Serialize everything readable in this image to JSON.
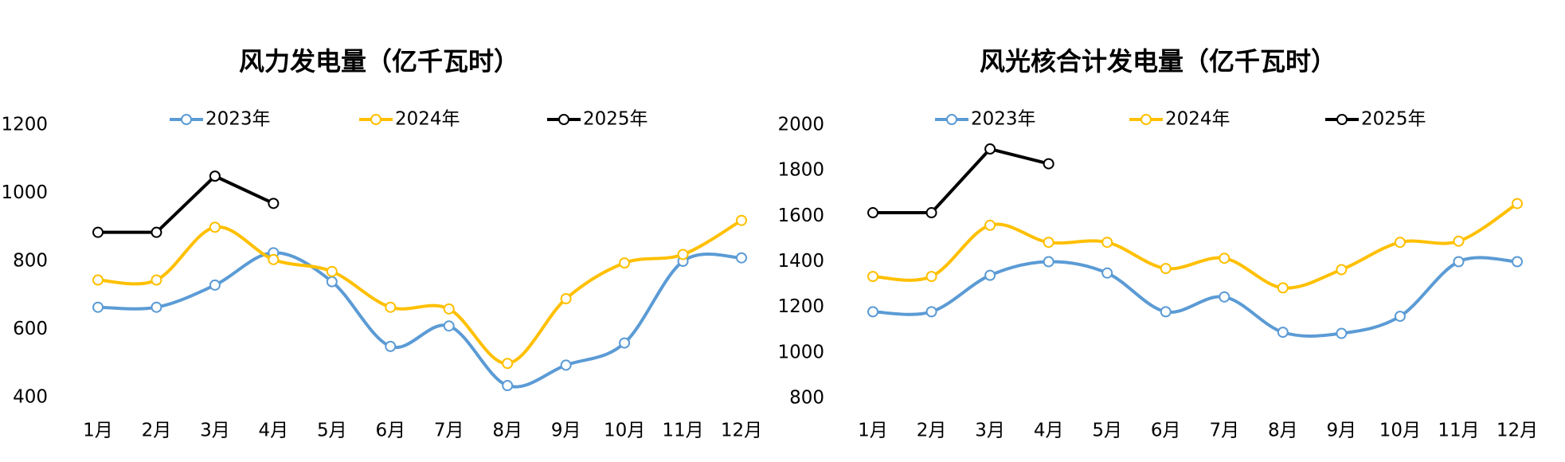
{
  "chart_data": [
    {
      "type": "line",
      "title": "风力发电量（亿千瓦时）",
      "categories": [
        "1月",
        "2月",
        "3月",
        "4月",
        "5月",
        "6月",
        "7月",
        "8月",
        "9月",
        "10月",
        "11月",
        "12月"
      ],
      "ylim": [
        400,
        1200
      ],
      "yticks": [
        400,
        600,
        800,
        1000,
        1200
      ],
      "series": [
        {
          "name": "2023年",
          "color": "#5b9bd5",
          "smooth": true,
          "values": [
            665,
            665,
            730,
            825,
            740,
            550,
            610,
            435,
            495,
            560,
            800,
            810
          ]
        },
        {
          "name": "2024年",
          "color": "#ffc000",
          "smooth": true,
          "values": [
            745,
            745,
            900,
            805,
            770,
            665,
            660,
            500,
            690,
            795,
            820,
            920
          ]
        },
        {
          "name": "2025年",
          "color": "#000000",
          "smooth": false,
          "values": [
            885,
            885,
            1050,
            970,
            null,
            null,
            null,
            null,
            null,
            null,
            null,
            null
          ]
        }
      ]
    },
    {
      "type": "line",
      "title": "风光核合计发电量（亿千瓦时）",
      "categories": [
        "1月",
        "2月",
        "3月",
        "4月",
        "5月",
        "6月",
        "7月",
        "8月",
        "9月",
        "10月",
        "11月",
        "12月"
      ],
      "ylim": [
        800,
        2000
      ],
      "yticks": [
        800,
        1000,
        1200,
        1400,
        1600,
        1800,
        2000
      ],
      "series": [
        {
          "name": "2023年",
          "color": "#5b9bd5",
          "smooth": true,
          "values": [
            1180,
            1180,
            1340,
            1400,
            1350,
            1180,
            1245,
            1090,
            1085,
            1160,
            1400,
            1400
          ]
        },
        {
          "name": "2024年",
          "color": "#ffc000",
          "smooth": true,
          "values": [
            1335,
            1335,
            1560,
            1485,
            1485,
            1370,
            1415,
            1285,
            1365,
            1485,
            1490,
            1655
          ]
        },
        {
          "name": "2025年",
          "color": "#000000",
          "smooth": false,
          "values": [
            1615,
            1615,
            1895,
            1830,
            null,
            null,
            null,
            null,
            null,
            null,
            null,
            null
          ]
        }
      ]
    }
  ]
}
